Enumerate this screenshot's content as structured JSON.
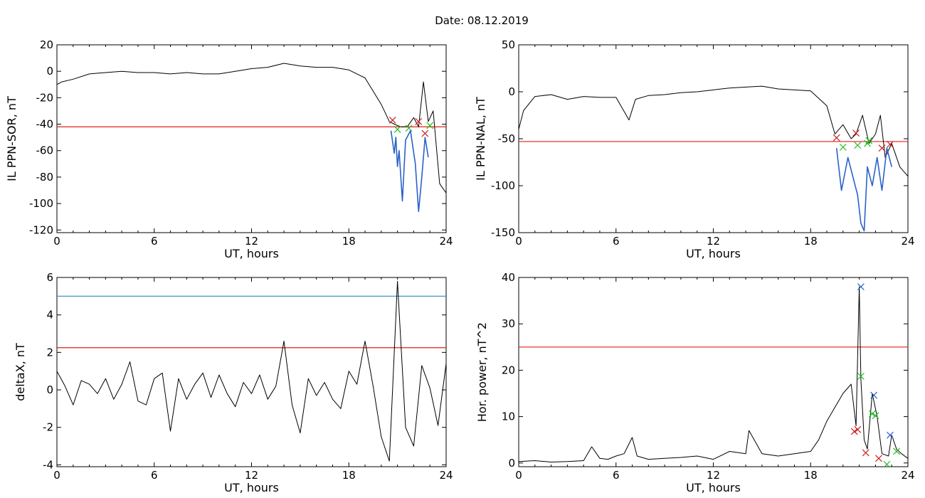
{
  "page": {
    "title": "Date:  08.12.2019"
  },
  "chart_data": [
    {
      "type": "line",
      "ylabel": "IL PPN-SOR, nT",
      "xlabel": "UT, hours",
      "xlim": [
        0,
        24
      ],
      "ylim": [
        -122,
        20
      ],
      "xticks": [
        0,
        6,
        12,
        18,
        24
      ],
      "yticks": [
        20,
        0,
        -20,
        -40,
        -60,
        -80,
        -100,
        -120
      ],
      "threshold_lines": [
        {
          "y": -42,
          "color": "#e0201a"
        }
      ],
      "series": [
        {
          "color": "#000000",
          "x": [
            0,
            0.3,
            1,
            2,
            3,
            4,
            5,
            6,
            7,
            8,
            9,
            10,
            11,
            12,
            13,
            14,
            15,
            16,
            17,
            18,
            19,
            20,
            20.5,
            20.8,
            21.2,
            21.6,
            22,
            22.3,
            22.6,
            22.9,
            23.2,
            23.6,
            24
          ],
          "values": [
            -10,
            -8,
            -6,
            -2,
            -1,
            0,
            -1,
            -1,
            -2,
            -1,
            -2,
            -2,
            0,
            2,
            3,
            6,
            4,
            3,
            3,
            1,
            -5,
            -25,
            -38,
            -40,
            -42,
            -42,
            -35,
            -42,
            -8,
            -38,
            -30,
            -85,
            -92
          ]
        },
        {
          "color": "#2a62c8",
          "x": [
            20.6,
            20.8,
            20.9,
            21.0,
            21.1,
            21.3,
            21.5,
            21.8,
            22.1,
            22.3,
            22.5,
            22.7,
            22.9
          ],
          "values": [
            -45,
            -62,
            -50,
            -72,
            -60,
            -98,
            -52,
            -45,
            -70,
            -106,
            -80,
            -50,
            -65
          ]
        }
      ],
      "markers": [
        {
          "x": 20.7,
          "y": -37,
          "color": "#cc2020"
        },
        {
          "x": 21.0,
          "y": -44,
          "color": "#22bb22"
        },
        {
          "x": 21.7,
          "y": -43,
          "color": "#22bb22"
        },
        {
          "x": 22.3,
          "y": -38,
          "color": "#cc2020"
        },
        {
          "x": 22.7,
          "y": -47,
          "color": "#cc2020"
        },
        {
          "x": 23.0,
          "y": -41,
          "color": "#22bb22"
        }
      ]
    },
    {
      "type": "line",
      "ylabel": "IL PPN-NAL, nT",
      "xlabel": "UT, hours",
      "xlim": [
        0,
        24
      ],
      "ylim": [
        -150,
        50
      ],
      "xticks": [
        0,
        6,
        12,
        18,
        24
      ],
      "yticks": [
        50,
        0,
        -50,
        -100,
        -150
      ],
      "threshold_lines": [
        {
          "y": -53,
          "color": "#e0201a"
        }
      ],
      "series": [
        {
          "color": "#000000",
          "x": [
            0,
            0.3,
            1,
            2,
            3,
            4,
            5,
            6,
            6.8,
            7.2,
            8,
            9,
            10,
            11,
            12,
            13,
            14,
            15,
            16,
            17,
            18,
            19,
            19.5,
            20,
            20.5,
            20.8,
            21.2,
            21.6,
            22,
            22.3,
            22.6,
            23,
            23.5,
            24
          ],
          "values": [
            -40,
            -20,
            -5,
            -3,
            -8,
            -5,
            -6,
            -6,
            -30,
            -8,
            -4,
            -3,
            -1,
            0,
            2,
            4,
            5,
            6,
            3,
            2,
            1,
            -15,
            -45,
            -35,
            -50,
            -45,
            -25,
            -55,
            -45,
            -25,
            -70,
            -55,
            -80,
            -90
          ]
        },
        {
          "color": "#2a62c8",
          "x": [
            19.6,
            19.9,
            20.3,
            20.6,
            20.9,
            21.1,
            21.3,
            21.5,
            21.8,
            22.1,
            22.4,
            22.7,
            23.0
          ],
          "values": [
            -60,
            -105,
            -70,
            -90,
            -110,
            -140,
            -148,
            -80,
            -100,
            -70,
            -105,
            -60,
            -80
          ]
        }
      ],
      "markers": [
        {
          "x": 19.6,
          "y": -49,
          "color": "#cc2020"
        },
        {
          "x": 20.0,
          "y": -59,
          "color": "#22bb22"
        },
        {
          "x": 20.8,
          "y": -44,
          "color": "#cc2020"
        },
        {
          "x": 20.9,
          "y": -57,
          "color": "#22bb22"
        },
        {
          "x": 21.5,
          "y": -55,
          "color": "#22bb22"
        },
        {
          "x": 21.6,
          "y": -52,
          "color": "#22bb22"
        },
        {
          "x": 22.4,
          "y": -60,
          "color": "#cc2020"
        },
        {
          "x": 22.9,
          "y": -56,
          "color": "#cc2020"
        }
      ]
    },
    {
      "type": "line",
      "ylabel": "deltaX, nT",
      "xlabel": "UT, hours",
      "xlim": [
        0,
        24
      ],
      "ylim": [
        -4.1,
        6
      ],
      "xticks": [
        0,
        6,
        12,
        18,
        24
      ],
      "yticks": [
        6,
        4,
        2,
        0,
        -2,
        -4
      ],
      "threshold_lines": [
        {
          "y": 5.0,
          "color": "#2a8fb0"
        },
        {
          "y": 2.25,
          "color": "#e0201a"
        }
      ],
      "series": [
        {
          "color": "#000000",
          "x": [
            0,
            0.5,
            1,
            1.5,
            2,
            2.5,
            3,
            3.5,
            4,
            4.5,
            5,
            5.5,
            6,
            6.5,
            7,
            7.5,
            8,
            8.5,
            9,
            9.5,
            10,
            10.5,
            11,
            11.5,
            12,
            12.5,
            13,
            13.5,
            14,
            14.5,
            15,
            15.5,
            16,
            16.5,
            17,
            17.5,
            18,
            18.5,
            19,
            19.5,
            20,
            20.5,
            21,
            21.5,
            22,
            22.5,
            23,
            23.5,
            24
          ],
          "values": [
            1.0,
            0.2,
            -0.8,
            0.5,
            0.3,
            -0.2,
            0.6,
            -0.5,
            0.3,
            1.5,
            -0.6,
            -0.8,
            0.6,
            0.9,
            -2.2,
            0.6,
            -0.5,
            0.3,
            0.9,
            -0.4,
            0.8,
            -0.2,
            -0.9,
            0.4,
            -0.2,
            0.8,
            -0.5,
            0.2,
            2.6,
            -0.8,
            -2.3,
            0.6,
            -0.3,
            0.4,
            -0.5,
            -1.0,
            1.0,
            0.3,
            2.6,
            0.2,
            -2.5,
            -3.8,
            5.8,
            -2.0,
            -3.0,
            1.3,
            0.1,
            -1.9,
            1.4
          ]
        }
      ],
      "markers": []
    },
    {
      "type": "line",
      "ylabel": "Hor. power, nT^2",
      "xlabel": "UT, hours",
      "xlim": [
        0,
        24
      ],
      "ylim": [
        -0.8,
        40
      ],
      "xticks": [
        0,
        6,
        12,
        18,
        24
      ],
      "yticks": [
        40,
        30,
        20,
        10,
        0
      ],
      "threshold_lines": [
        {
          "y": 25,
          "color": "#e0201a"
        }
      ],
      "series": [
        {
          "color": "#000000",
          "x": [
            0,
            1,
            2,
            3,
            4,
            4.5,
            5,
            5.5,
            6,
            6.5,
            7,
            7.3,
            8,
            9,
            10,
            11,
            12,
            13,
            14,
            14.2,
            15,
            16,
            17,
            18,
            18.5,
            19,
            19.5,
            20,
            20.5,
            20.8,
            21.0,
            21.1,
            21.3,
            21.5,
            21.8,
            22.1,
            22.4,
            22.8,
            23.0,
            23.3,
            23.6,
            24
          ],
          "values": [
            0.3,
            0.5,
            0.2,
            0.3,
            0.5,
            3.5,
            1.0,
            0.8,
            1.5,
            2.0,
            5.5,
            1.5,
            0.8,
            1.0,
            1.2,
            1.5,
            0.8,
            2.5,
            2.0,
            7.0,
            2.0,
            1.5,
            2.0,
            2.5,
            5.0,
            9.0,
            12.0,
            15.0,
            17.0,
            8.0,
            38.0,
            18.0,
            5.0,
            3.0,
            15.0,
            10.0,
            2.0,
            1.5,
            6.0,
            3.0,
            2.0,
            1.0
          ]
        }
      ],
      "markers": [
        {
          "x": 21.1,
          "y": 38.0,
          "color": "#2a62c8"
        },
        {
          "x": 21.1,
          "y": 18.7,
          "color": "#22bb22"
        },
        {
          "x": 21.9,
          "y": 14.6,
          "color": "#2a62c8"
        },
        {
          "x": 21.8,
          "y": 10.6,
          "color": "#22bb22"
        },
        {
          "x": 22.0,
          "y": 10.2,
          "color": "#22bb22"
        },
        {
          "x": 20.9,
          "y": 7.2,
          "color": "#cc2020"
        },
        {
          "x": 20.7,
          "y": 6.8,
          "color": "#cc2020"
        },
        {
          "x": 21.4,
          "y": 2.2,
          "color": "#cc2020"
        },
        {
          "x": 22.2,
          "y": 1.0,
          "color": "#cc2020"
        },
        {
          "x": 22.9,
          "y": 6.0,
          "color": "#2a62c8"
        },
        {
          "x": 23.3,
          "y": 2.5,
          "color": "#22bb22"
        },
        {
          "x": 22.7,
          "y": -0.3,
          "color": "#22bb22"
        }
      ]
    }
  ]
}
